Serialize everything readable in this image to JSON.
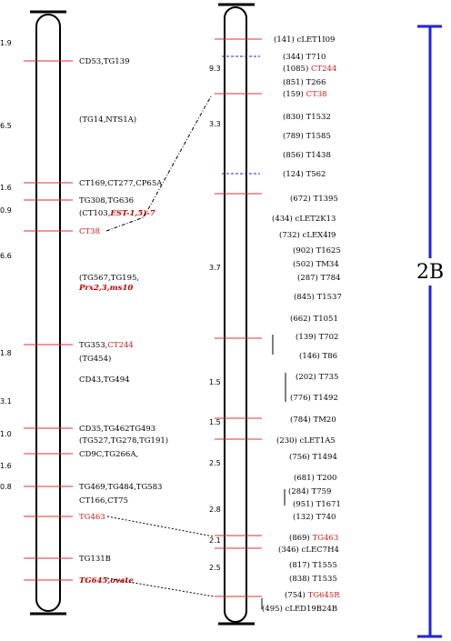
{
  "colors": {
    "marker_red": "#e03030",
    "chromosome": "#000000",
    "bracket": "#2222dd"
  },
  "chromosome_label": "2B",
  "left_chromosome": {
    "distances": [
      {
        "text": "1.9"
      },
      {
        "text": "6.5"
      },
      {
        "text": "1.6"
      },
      {
        "text": "0.9"
      },
      {
        "text": "6.6"
      },
      {
        "text": "1.8"
      },
      {
        "text": "3.1"
      },
      {
        "text": "1.0"
      },
      {
        "text": "1.6"
      },
      {
        "text": "0.8"
      }
    ],
    "markers": [
      {
        "segments": [
          {
            "text": "CD53,TG139"
          }
        ]
      },
      {
        "segments": [
          {
            "text": "(TG14,NTS1A)"
          }
        ]
      },
      {
        "segments": [
          {
            "text": "CT169,CT277,CP65A"
          }
        ]
      },
      {
        "segments": [
          {
            "text": "TG308,TG636"
          }
        ]
      },
      {
        "segments": [
          {
            "text": "(CT103,"
          },
          {
            "text": "EST-1,5)-7",
            "style": "redb"
          }
        ]
      },
      {
        "segments": [
          {
            "text": "CT38",
            "style": "red"
          }
        ]
      },
      {
        "segments": [
          {
            "text": "(TG567,TG195,"
          }
        ]
      },
      {
        "segments": [
          {
            "text": "Prx2,3,ms10",
            "style": "redb"
          }
        ]
      },
      {
        "segments": [
          {
            "text": "TG353,"
          },
          {
            "text": "CT244",
            "style": "red"
          }
        ]
      },
      {
        "segments": [
          {
            "text": "(TG454)"
          }
        ]
      },
      {
        "segments": [
          {
            "text": "CD43,TG494"
          }
        ]
      },
      {
        "segments": [
          {
            "text": "CD35,TG462TG493"
          }
        ]
      },
      {
        "segments": [
          {
            "text": "(TG527,TG278,TG191)"
          }
        ]
      },
      {
        "segments": [
          {
            "text": "CD9C,TG266A,"
          }
        ]
      },
      {
        "segments": [
          {
            "text": "TG469,TG484,TG583"
          }
        ]
      },
      {
        "segments": [
          {
            "text": "CT166,CT75"
          }
        ]
      },
      {
        "segments": [
          {
            "text": "TG463",
            "style": "red"
          }
        ]
      },
      {
        "segments": [
          {
            "text": "TG131B"
          }
        ]
      },
      {
        "segments": [
          {
            "text": "TG645,ovate",
            "style": "redb"
          }
        ]
      }
    ]
  },
  "right_chromosome": {
    "distances": [
      {
        "text": "9.3"
      },
      {
        "text": "3.3"
      },
      {
        "text": "3.7"
      },
      {
        "text": "1.5"
      },
      {
        "text": "1.5"
      },
      {
        "text": "2.5"
      },
      {
        "text": "2.8"
      },
      {
        "text": "2.1"
      },
      {
        "text": "2.5"
      }
    ],
    "markers": [
      {
        "segments": [
          {
            "text": "(141) cLET1I09"
          }
        ]
      },
      {
        "segments": [
          {
            "text": "(344) T710"
          }
        ]
      },
      {
        "segments": [
          {
            "text": "(1085) "
          },
          {
            "text": "CT244",
            "style": "red"
          }
        ]
      },
      {
        "segments": [
          {
            "text": "(851) T266"
          }
        ]
      },
      {
        "segments": [
          {
            "text": "(159) "
          },
          {
            "text": "CT38",
            "style": "red"
          }
        ]
      },
      {
        "segments": [
          {
            "text": "(830) T1532"
          }
        ]
      },
      {
        "segments": [
          {
            "text": "(789) T1585"
          }
        ]
      },
      {
        "segments": [
          {
            "text": "(856) T1438"
          }
        ]
      },
      {
        "segments": [
          {
            "text": "(124) T562"
          }
        ]
      },
      {
        "segments": [
          {
            "text": "(672) T1395"
          }
        ]
      },
      {
        "segments": [
          {
            "text": "(434) cLET2K13"
          }
        ]
      },
      {
        "segments": [
          {
            "text": "(732) cLEX4I9"
          }
        ]
      },
      {
        "segments": [
          {
            "text": "(902) T1625"
          }
        ]
      },
      {
        "segments": [
          {
            "text": "(502) TM34"
          }
        ]
      },
      {
        "segments": [
          {
            "text": "(287) T784"
          }
        ]
      },
      {
        "segments": [
          {
            "text": "(845) T1537"
          }
        ]
      },
      {
        "segments": [
          {
            "text": "(662) T1051"
          }
        ]
      },
      {
        "segments": [
          {
            "text": "(139) T702"
          }
        ]
      },
      {
        "segments": [
          {
            "text": "(146) T86"
          }
        ]
      },
      {
        "segments": [
          {
            "text": "(202) T735"
          }
        ]
      },
      {
        "segments": [
          {
            "text": "(776) T1492"
          }
        ]
      },
      {
        "segments": [
          {
            "text": "(784) TM20"
          }
        ]
      },
      {
        "segments": [
          {
            "text": "(230) cLET1A5"
          }
        ]
      },
      {
        "segments": [
          {
            "text": "(756) T1494"
          }
        ]
      },
      {
        "segments": [
          {
            "text": "(681) T200"
          }
        ]
      },
      {
        "segments": [
          {
            "text": "(284) T759"
          }
        ]
      },
      {
        "segments": [
          {
            "text": "(951) T1671"
          }
        ]
      },
      {
        "segments": [
          {
            "text": "(132) T740"
          }
        ]
      },
      {
        "segments": [
          {
            "text": "(869) "
          },
          {
            "text": "TG463",
            "style": "red"
          }
        ]
      },
      {
        "segments": [
          {
            "text": "(346) cLEC7H4"
          }
        ]
      },
      {
        "segments": [
          {
            "text": "(817) T1555"
          }
        ]
      },
      {
        "segments": [
          {
            "text": "(838) T1535"
          }
        ]
      },
      {
        "segments": [
          {
            "text": "(754) "
          },
          {
            "text": "TG645R",
            "style": "red"
          }
        ]
      },
      {
        "segments": [
          {
            "text": "(495) cLED19B24B"
          }
        ]
      }
    ]
  }
}
